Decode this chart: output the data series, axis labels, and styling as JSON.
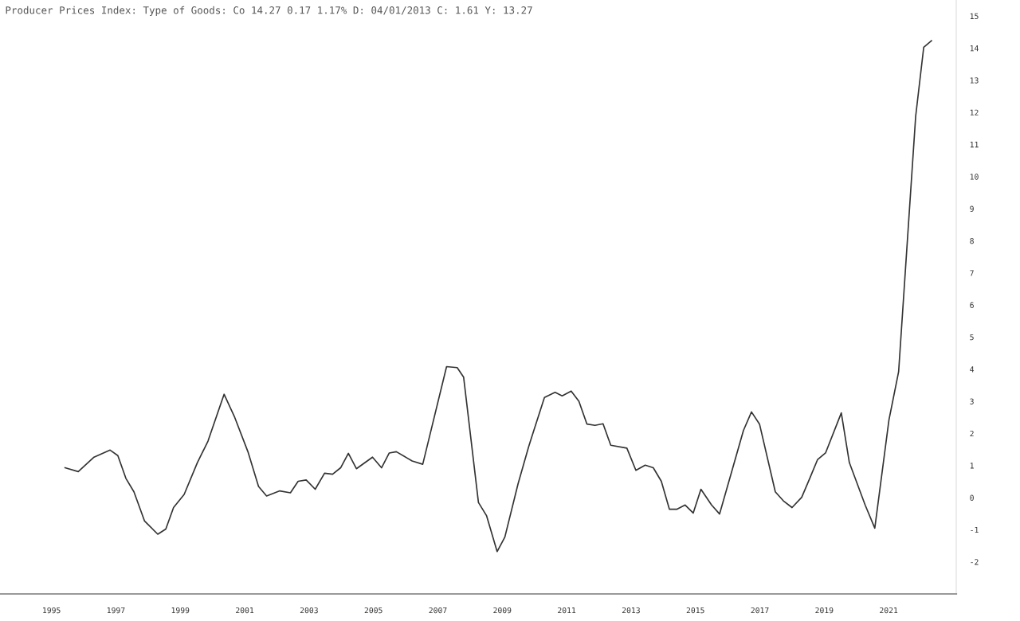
{
  "chart_data": {
    "type": "line",
    "title": "Producer Prices Index: Type of Goods: Co 14.27 0.17 1.17% D: 04/01/2013 C: 1.61 Y: 13.27",
    "series": [
      {
        "color": "#333333",
        "x": [
          1995.42,
          1995.83,
          1996.32,
          1996.82,
          1997.06,
          1997.31,
          1997.56,
          1997.89,
          1998.3,
          1998.55,
          1998.79,
          1999.12,
          1999.53,
          1999.86,
          2000.36,
          2000.69,
          2001.1,
          2001.43,
          2001.68,
          2002.09,
          2002.42,
          2002.66,
          2002.91,
          2003.19,
          2003.48,
          2003.73,
          2003.98,
          2004.22,
          2004.47,
          2004.97,
          2005.25,
          2005.49,
          2005.71,
          2006.2,
          2006.53,
          2007.27,
          2007.6,
          2007.8,
          2008.26,
          2008.51,
          2008.84,
          2009.08,
          2009.49,
          2009.82,
          2009.9,
          2010.31,
          2010.64,
          2010.86,
          2011.14,
          2011.38,
          2011.63,
          2011.88,
          2012.13,
          2012.37,
          2012.87,
          2013.15,
          2013.44,
          2013.69,
          2013.94,
          2014.19,
          2014.43,
          2014.68,
          2014.93,
          2015.17,
          2015.5,
          2015.75,
          2016.16,
          2016.49,
          2016.74,
          2016.99,
          2017.48,
          2017.73,
          2018.0,
          2018.3,
          2018.55,
          2018.79,
          2019.04,
          2019.53,
          2019.78,
          2020.27,
          2020.57,
          2021.01,
          2021.31,
          2021.84,
          2022.09,
          2022.33
        ],
        "values": [
          0.93,
          0.81,
          1.26,
          1.48,
          1.31,
          0.6,
          0.18,
          -0.73,
          -1.14,
          -0.98,
          -0.31,
          0.1,
          1.09,
          1.76,
          3.22,
          2.5,
          1.43,
          0.35,
          0.05,
          0.21,
          0.15,
          0.51,
          0.55,
          0.26,
          0.76,
          0.73,
          0.93,
          1.38,
          0.9,
          1.26,
          0.93,
          1.39,
          1.43,
          1.14,
          1.04,
          4.08,
          4.05,
          3.75,
          -0.15,
          -0.56,
          -1.68,
          -1.23,
          0.43,
          1.59,
          1.84,
          3.12,
          3.28,
          3.17,
          3.32,
          3.0,
          2.29,
          2.25,
          2.3,
          1.63,
          1.54,
          0.85,
          1.01,
          0.93,
          0.51,
          -0.36,
          -0.36,
          -0.23,
          -0.48,
          0.26,
          -0.23,
          -0.51,
          0.93,
          2.09,
          2.67,
          2.29,
          0.18,
          -0.1,
          -0.31,
          0.01,
          0.6,
          1.18,
          1.39,
          2.64,
          1.09,
          -0.23,
          -0.95,
          2.42,
          3.92,
          11.88,
          14.03,
          14.23
        ]
      }
    ],
    "xlim": [
      1993.4,
      2023.1
    ],
    "xticks": [
      1995,
      1997,
      1999,
      2001,
      2003,
      2005,
      2007,
      2009,
      2011,
      2013,
      2015,
      2017,
      2019,
      2021
    ],
    "ylim": [
      -3.0,
      15.5
    ],
    "yticks": [
      -2,
      -1,
      0,
      1,
      2,
      3,
      4,
      5,
      6,
      7,
      8,
      9,
      10,
      11,
      12,
      13,
      14,
      15
    ],
    "grid": false,
    "marker": "none",
    "line_style": "solid"
  }
}
